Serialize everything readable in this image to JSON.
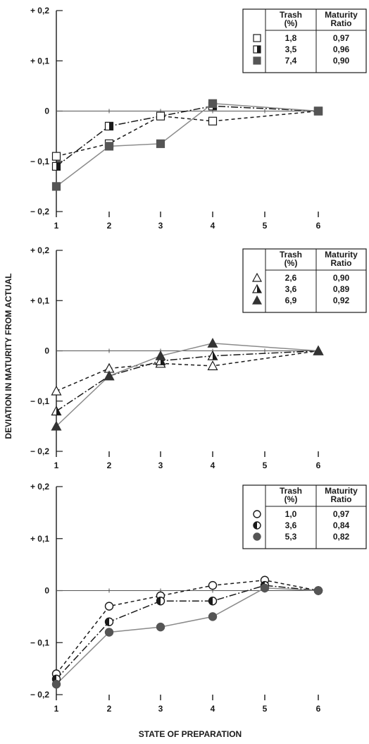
{
  "figure": {
    "ylabel": "DEVIATION IN MATURITY FROM ACTUAL",
    "xlabel": "STATE OF PREPARATION"
  },
  "chart_data": [
    {
      "type": "line",
      "x": [
        1,
        2,
        3,
        4,
        5,
        6
      ],
      "xticks": [
        "1",
        "2",
        "3",
        "4",
        "5",
        "6"
      ],
      "yticks": [
        "+ 0,2",
        "+ 0,1",
        "0",
        "− 0,1",
        "− 0,2"
      ],
      "ytick_values": [
        0.2,
        0.1,
        0,
        -0.1,
        -0.2
      ],
      "ylim": [
        -0.2,
        0.2
      ],
      "legend_headers": {
        "trash": "Trash\n(%)",
        "maturity": "Maturity\nRatio"
      },
      "series": [
        {
          "trash": "1,8",
          "maturity": "0,97",
          "marker": "square",
          "fill": "open",
          "line": "dashed",
          "points": [
            [
              1,
              -0.09
            ],
            [
              2,
              -0.065
            ],
            [
              3,
              -0.01
            ],
            [
              4,
              -0.02
            ],
            [
              6,
              0.0
            ]
          ]
        },
        {
          "trash": "3,5",
          "maturity": "0,96",
          "marker": "square",
          "fill": "half",
          "line": "dashdot",
          "points": [
            [
              1,
              -0.11
            ],
            [
              2,
              -0.03
            ],
            [
              4,
              0.01
            ],
            [
              6,
              0.0
            ]
          ]
        },
        {
          "trash": "7,4",
          "maturity": "0,90",
          "marker": "square",
          "fill": "solid",
          "line": "solid",
          "points": [
            [
              1,
              -0.15
            ],
            [
              2,
              -0.07
            ],
            [
              3,
              -0.065
            ],
            [
              4,
              0.015
            ],
            [
              6,
              0.0
            ]
          ]
        }
      ]
    },
    {
      "type": "line",
      "x": [
        1,
        2,
        3,
        4,
        5,
        6
      ],
      "xticks": [
        "1",
        "2",
        "3",
        "4",
        "5",
        "6"
      ],
      "yticks": [
        "+ 0,2",
        "+ 0,1",
        "0",
        "− 0,1",
        "− 0,2"
      ],
      "ytick_values": [
        0.2,
        0.1,
        0,
        -0.1,
        -0.2
      ],
      "ylim": [
        -0.2,
        0.2
      ],
      "legend_headers": {
        "trash": "Trash\n(%)",
        "maturity": "Maturity\nRatio"
      },
      "series": [
        {
          "trash": "2,6",
          "maturity": "0,90",
          "marker": "triangle",
          "fill": "open",
          "line": "dashed",
          "points": [
            [
              1,
              -0.08
            ],
            [
              2,
              -0.035
            ],
            [
              3,
              -0.025
            ],
            [
              4,
              -0.03
            ],
            [
              6,
              0.0
            ]
          ]
        },
        {
          "trash": "3,6",
          "maturity": "0,89",
          "marker": "triangle",
          "fill": "half",
          "line": "dashdot",
          "points": [
            [
              1,
              -0.12
            ],
            [
              2,
              -0.05
            ],
            [
              3,
              -0.02
            ],
            [
              4,
              -0.01
            ],
            [
              6,
              0.0
            ]
          ]
        },
        {
          "trash": "6,9",
          "maturity": "0,92",
          "marker": "triangle",
          "fill": "solid",
          "line": "solid",
          "points": [
            [
              1,
              -0.15
            ],
            [
              2,
              -0.05
            ],
            [
              3,
              -0.01
            ],
            [
              4,
              0.015
            ],
            [
              6,
              0.0
            ]
          ]
        }
      ]
    },
    {
      "type": "line",
      "x": [
        1,
        2,
        3,
        4,
        5,
        6
      ],
      "xticks": [
        "1",
        "2",
        "3",
        "4",
        "5",
        "6"
      ],
      "yticks": [
        "+ 0,2",
        "+ 0,1",
        "0",
        "− 0,1",
        "− 0,2"
      ],
      "ytick_values": [
        0.2,
        0.1,
        0,
        -0.1,
        -0.2
      ],
      "ylim": [
        -0.2,
        0.2
      ],
      "legend_headers": {
        "trash": "Trash\n(%)",
        "maturity": "Maturity\nRatio"
      },
      "series": [
        {
          "trash": "1,0",
          "maturity": "0,97",
          "marker": "circle",
          "fill": "open",
          "line": "dashed",
          "points": [
            [
              1,
              -0.16
            ],
            [
              2,
              -0.03
            ],
            [
              3,
              -0.01
            ],
            [
              4,
              0.01
            ],
            [
              5,
              0.02
            ],
            [
              6,
              0.0
            ]
          ]
        },
        {
          "trash": "3,6",
          "maturity": "0,84",
          "marker": "circle",
          "fill": "half",
          "line": "dashdot",
          "points": [
            [
              1,
              -0.17
            ],
            [
              2,
              -0.06
            ],
            [
              3,
              -0.02
            ],
            [
              4,
              -0.02
            ],
            [
              5,
              0.01
            ],
            [
              6,
              0.0
            ]
          ]
        },
        {
          "trash": "5,3",
          "maturity": "0,82",
          "marker": "circle",
          "fill": "solid",
          "line": "solid",
          "points": [
            [
              1,
              -0.18
            ],
            [
              2,
              -0.08
            ],
            [
              3,
              -0.07
            ],
            [
              4,
              -0.05
            ],
            [
              5,
              0.005
            ],
            [
              6,
              0.0
            ]
          ]
        }
      ]
    }
  ]
}
